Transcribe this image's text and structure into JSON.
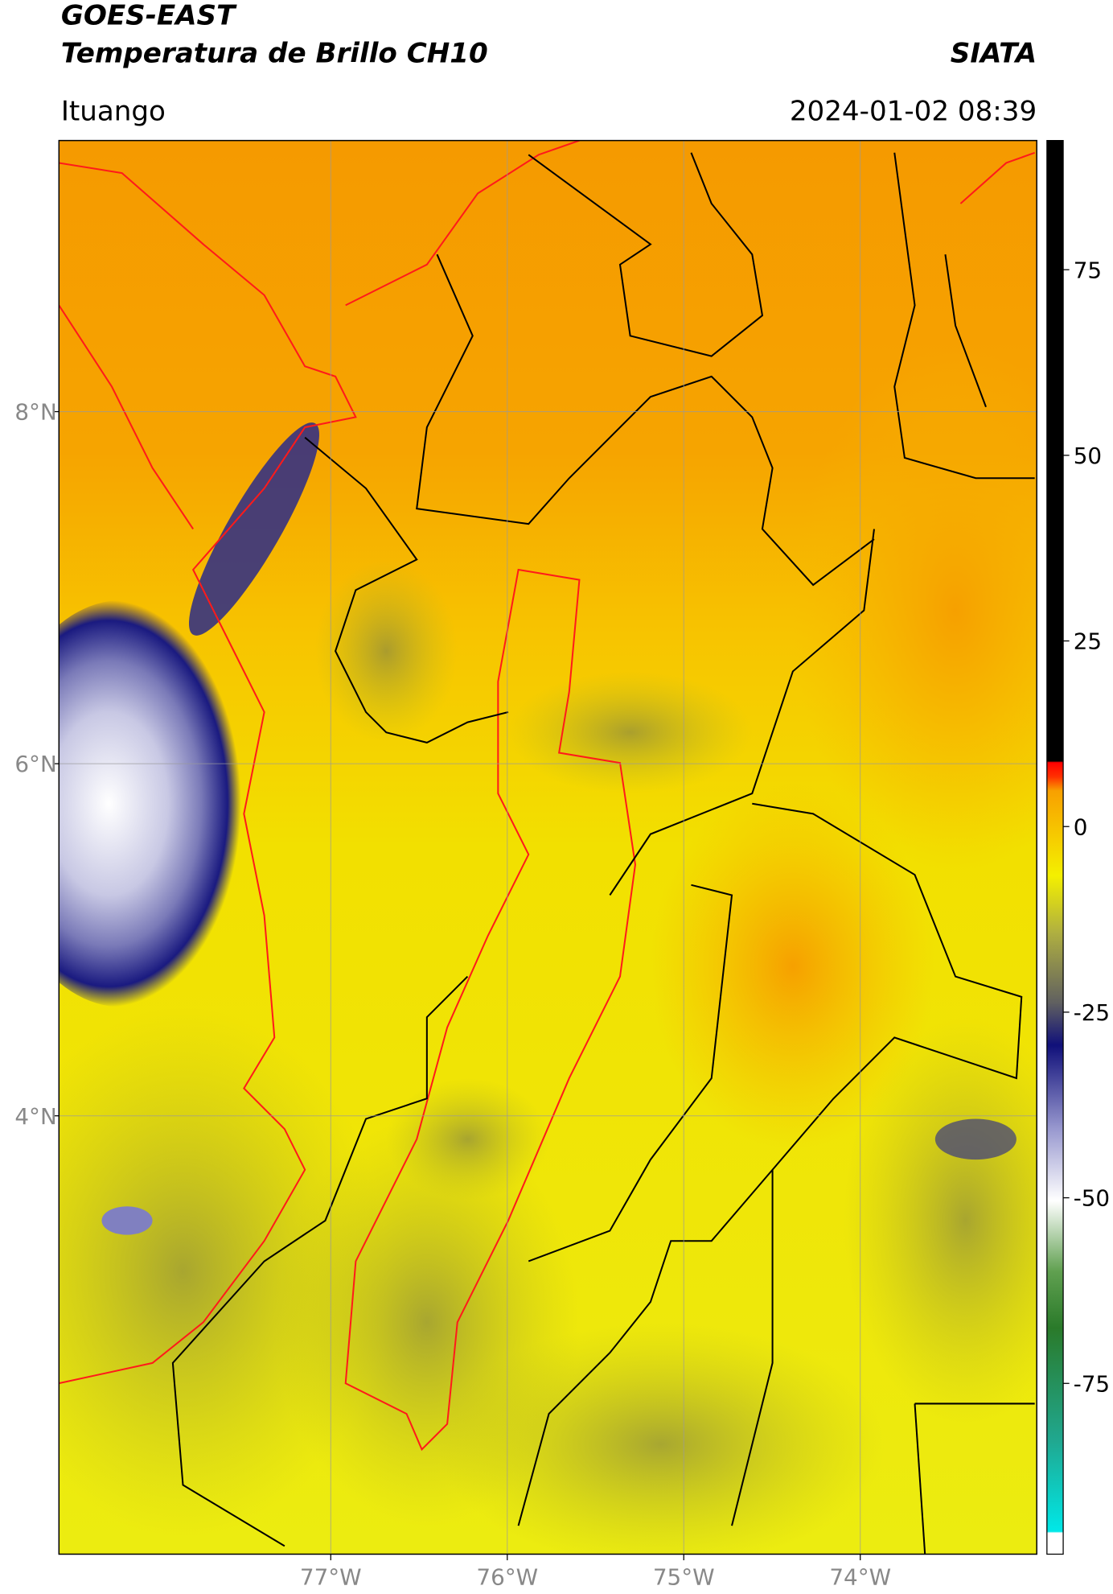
{
  "header": {
    "satellite": "GOES-EAST",
    "product": "Temperatura de Brillo CH10",
    "brand": "SIATA",
    "region": "Ituango",
    "datetime": "2024-01-02 08:39"
  },
  "map": {
    "lonlim": [
      -78.54,
      -73.0
    ],
    "latlim": [
      1.51,
      9.54
    ],
    "lonticks": [
      {
        "value": -77,
        "label": "77°W"
      },
      {
        "value": -76,
        "label": "76°W"
      },
      {
        "value": -75,
        "label": "75°W"
      },
      {
        "value": -74,
        "label": "74°W"
      }
    ],
    "latticks": [
      {
        "value": 8,
        "label": "8°N"
      },
      {
        "value": 6,
        "label": "6°N"
      },
      {
        "value": 4,
        "label": "4°N"
      }
    ],
    "grid": true
  },
  "colorbar": {
    "lim": [
      -98,
      92.4
    ],
    "ticks": [
      75,
      50,
      25,
      0,
      -25,
      -50,
      -75
    ]
  }
}
